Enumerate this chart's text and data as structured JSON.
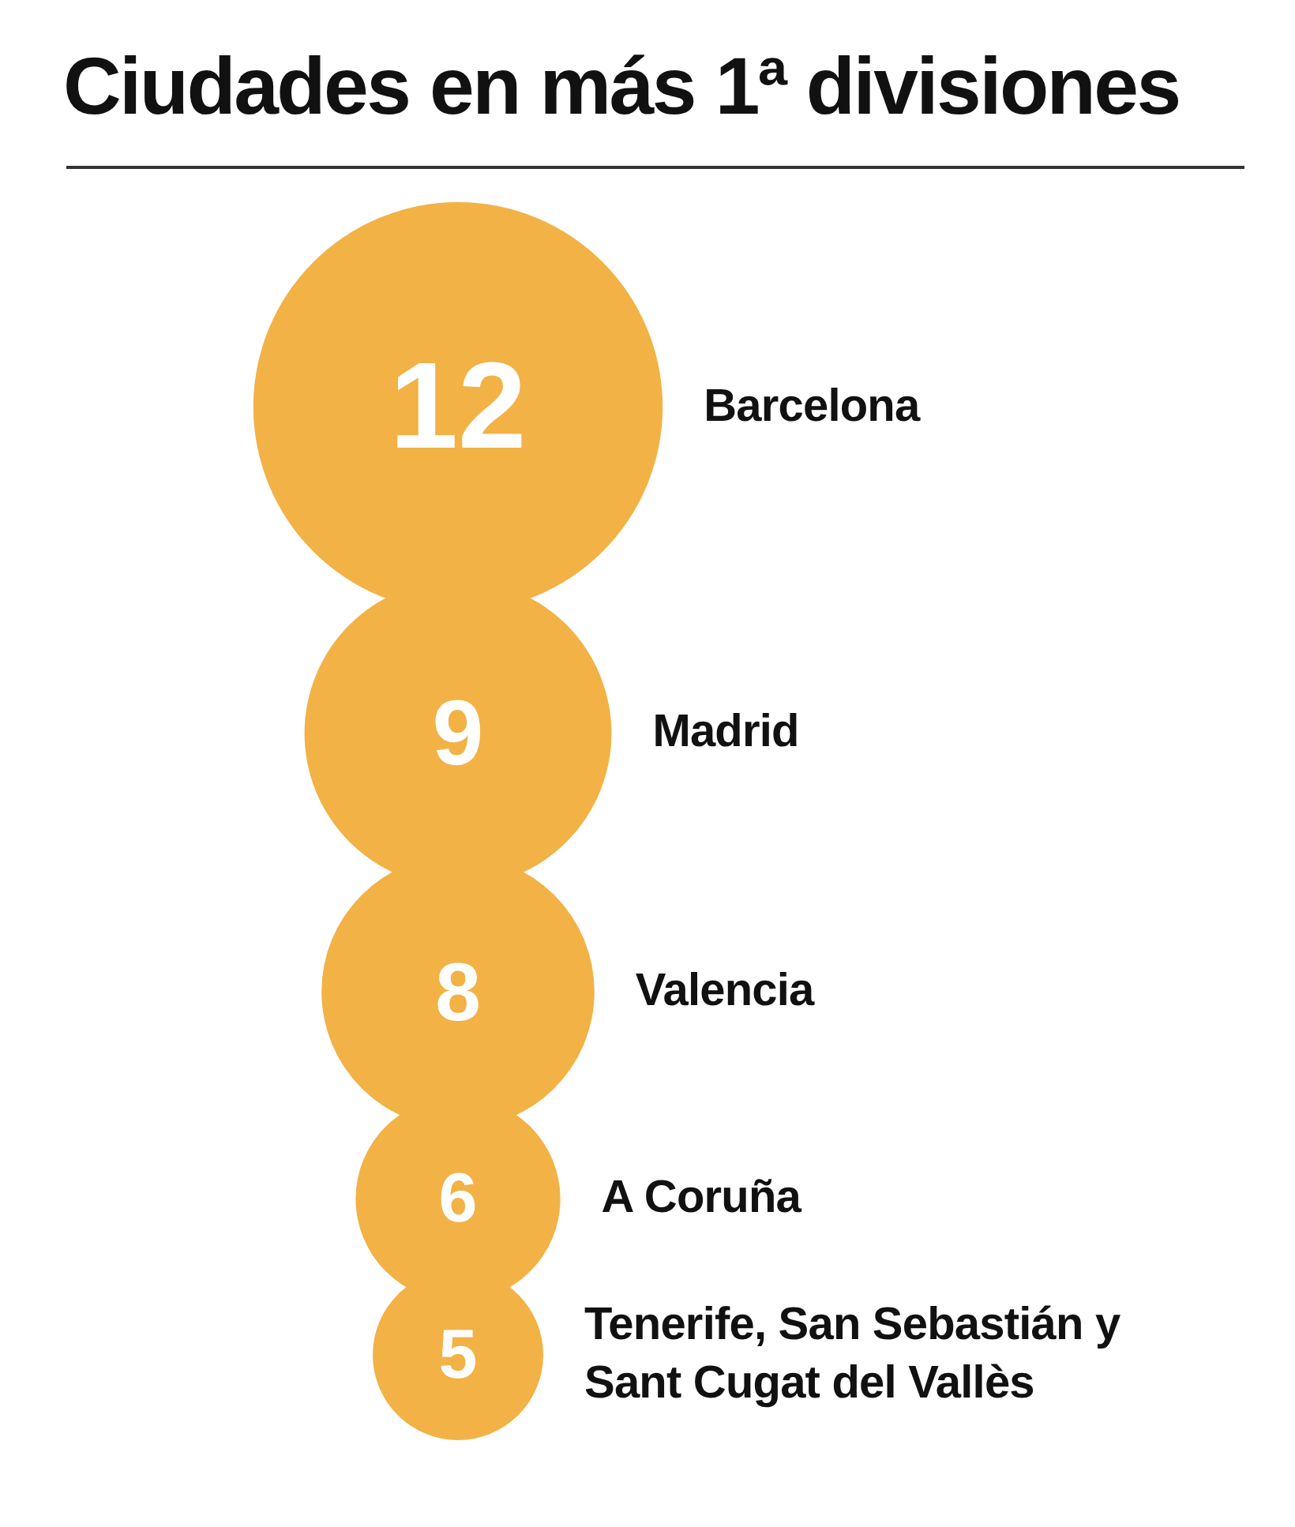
{
  "chart_data": {
    "type": "other",
    "title": "Ciudades en más 1ª divisiones",
    "categories": [
      "Barcelona",
      "Madrid",
      "Valencia",
      "A Coruña",
      "Tenerife, San Sebastián y Sant Cugat del Vallès"
    ],
    "values": [
      12,
      9,
      8,
      6,
      5
    ],
    "color": "#f2b246",
    "data_labels": true
  }
}
